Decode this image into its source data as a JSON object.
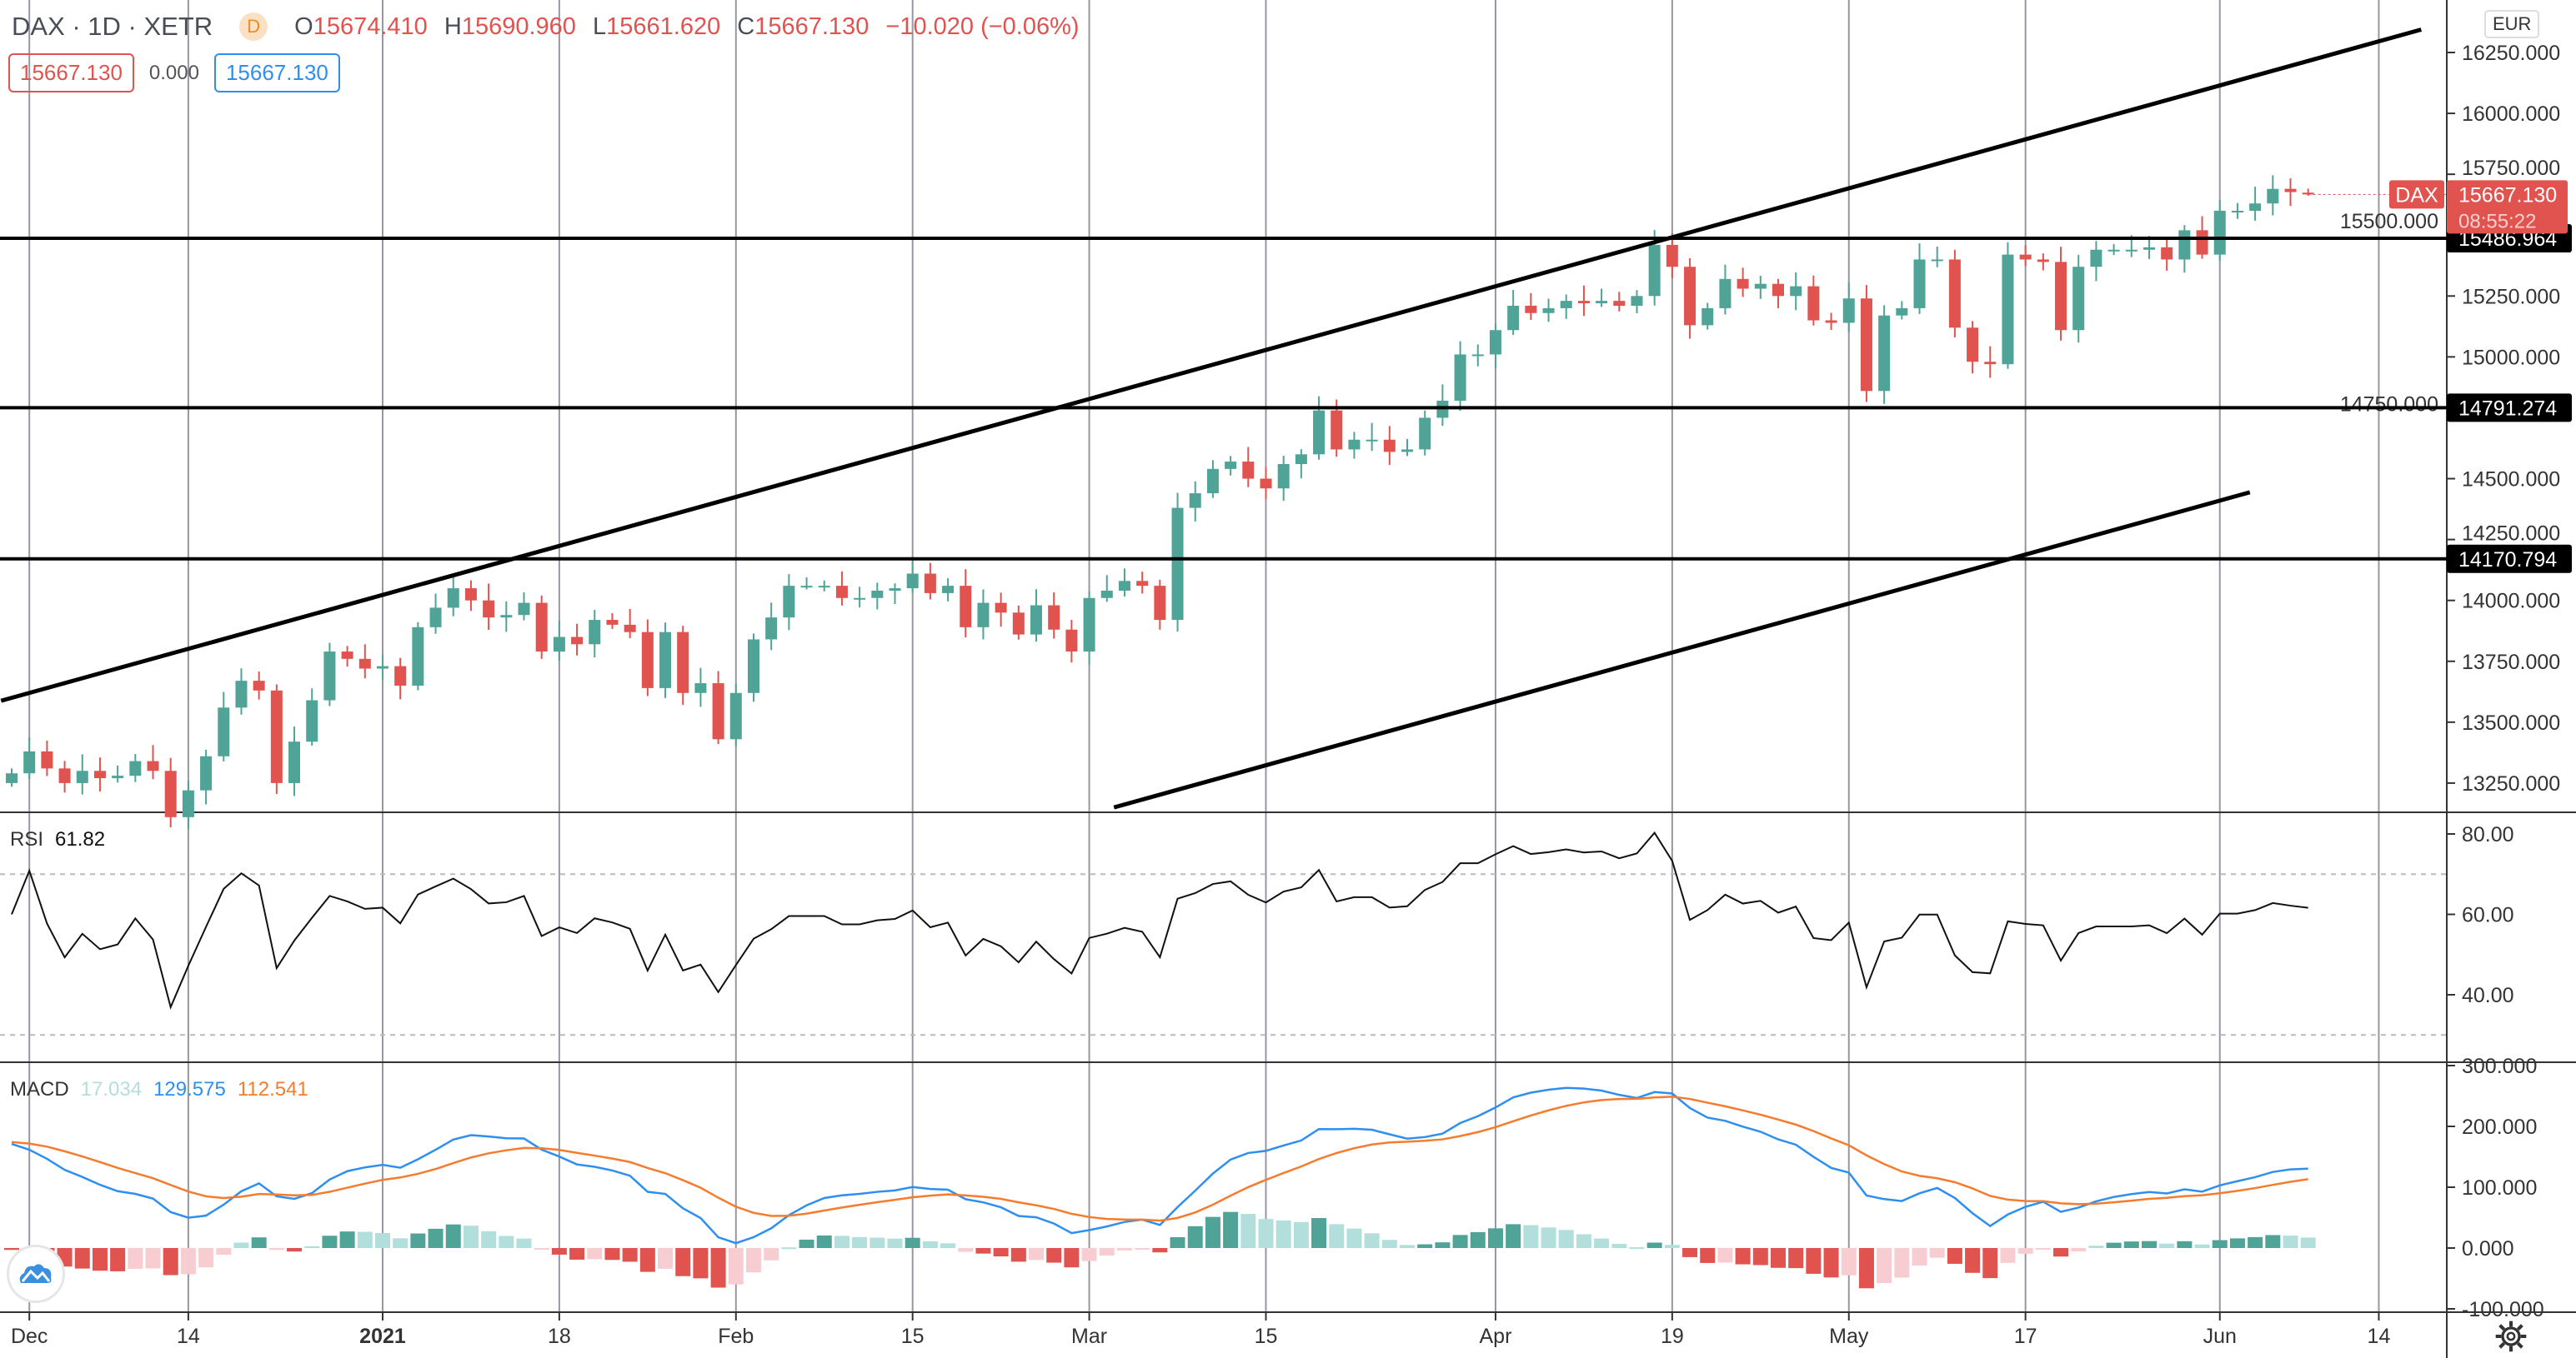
{
  "header": {
    "symbol": "DAX · 1D · XETR",
    "badge": "D",
    "o_label": "O",
    "o": "15674.410",
    "h_label": "H",
    "h": "15690.960",
    "l_label": "L",
    "l": "15661.620",
    "c_label": "C",
    "c": "15667.130",
    "change": "−10.020 (−0.06%)",
    "box_left": "15667.130",
    "box_mid": "0.000",
    "box_right": "15667.130",
    "currency": "EUR"
  },
  "rsi_legend": {
    "name": "RSI",
    "value": "61.82"
  },
  "macd_legend": {
    "name": "MACD",
    "hist": "17.034",
    "macd": "129.575",
    "signal": "112.541"
  },
  "colors": {
    "up": "#26a69a",
    "down": "#ef5350",
    "up_bar": "#4fa397",
    "down_bar": "#e0534f",
    "macd": "#2e8ff0",
    "signal": "#f57c2e",
    "hist_up_light": "#b2dfdb",
    "hist_down_light": "#f8cdd1",
    "grid": "#9598a1"
  },
  "chart_data": {
    "type": "candlestick",
    "title": "DAX · 1D · XETR",
    "closes": [
      13290,
      13380,
      13310,
      13250,
      13300,
      13270,
      13280,
      13340,
      13300,
      13110,
      13220,
      13360,
      13560,
      13670,
      13630,
      13250,
      13420,
      13590,
      13790,
      13760,
      13720,
      13730,
      13650,
      13890,
      13970,
      14050,
      14000,
      13930,
      13940,
      13990,
      13790,
      13850,
      13820,
      13920,
      13900,
      13870,
      13640,
      13870,
      13620,
      13660,
      13430,
      13620,
      13840,
      13930,
      14060,
      14060,
      14060,
      14010,
      14010,
      14040,
      14050,
      14110,
      14030,
      14060,
      13890,
      13990,
      13950,
      13860,
      13980,
      13880,
      13790,
      14010,
      14040,
      14080,
      14060,
      13920,
      14380,
      14440,
      14540,
      14570,
      14500,
      14460,
      14560,
      14600,
      14780,
      14620,
      14660,
      14660,
      14610,
      14620,
      14750,
      14820,
      15010,
      15010,
      15110,
      15210,
      15180,
      15200,
      15230,
      15220,
      15230,
      15210,
      15250,
      15460,
      15370,
      15130,
      15200,
      15320,
      15280,
      15300,
      15250,
      15290,
      15150,
      15140,
      15240,
      14860,
      15170,
      15200,
      15400,
      15400,
      15120,
      14980,
      14970,
      15420,
      15400,
      15390,
      15110,
      15370,
      15440,
      15440,
      15440,
      15450,
      15400,
      15520,
      15420,
      15600,
      15600,
      15630,
      15690,
      15677,
      15667.13
    ],
    "last_candle": {
      "open": 15674.41,
      "high": 15690.96,
      "low": 15661.62,
      "close": 15667.13
    },
    "ylim": [
      13150,
      16400
    ],
    "y_ticks": [
      "16250.000",
      "16000.000",
      "15750.000",
      "15500.000",
      "15250.000",
      "15000.000",
      "14750.000",
      "14500.000",
      "14250.000",
      "14000.000",
      "13750.000",
      "13500.000",
      "13250.000"
    ],
    "x_ticks": [
      {
        "index": 1,
        "label": "Dec"
      },
      {
        "index": 10,
        "label": "14"
      },
      {
        "index": 21,
        "label": "2021",
        "bold": true
      },
      {
        "index": 31,
        "label": "18"
      },
      {
        "index": 41,
        "label": "Feb"
      },
      {
        "index": 51,
        "label": "15"
      },
      {
        "index": 61,
        "label": "Mar"
      },
      {
        "index": 71,
        "label": "15"
      },
      {
        "index": 84,
        "label": "Apr"
      },
      {
        "index": 94,
        "label": "19"
      },
      {
        "index": 104,
        "label": "May"
      },
      {
        "index": 114,
        "label": "17"
      },
      {
        "index": 125,
        "label": "Jun"
      },
      {
        "index": 134,
        "label": "14"
      }
    ],
    "horizontal_levels": [
      {
        "price": 15486.964,
        "label": "15486.964"
      },
      {
        "price": 14791.274,
        "label": "14791.274"
      },
      {
        "price": 14170.794,
        "label": "14170.794"
      }
    ],
    "trend_lines": [
      {
        "from": [
          -0.6,
          13588
        ],
        "to": [
          136.4,
          16344
        ]
      },
      {
        "from": [
          62.4,
          13150
        ],
        "to": [
          126.7,
          14444
        ]
      }
    ],
    "last_price_tag": {
      "symbol": "DAX",
      "price": "15667.130",
      "countdown": "08:55:22"
    },
    "rsi": {
      "period": 14,
      "ylim": [
        30,
        90
      ],
      "ticks": [
        "80.00",
        "60.00",
        "40.00"
      ],
      "bands": [
        70,
        30
      ]
    },
    "macd": {
      "fast": 12,
      "slow": 26,
      "signal": 9,
      "ylim": [
        -110,
        310
      ],
      "ticks": [
        "300.000",
        "200.000",
        "100.000",
        "0.000",
        "-100.000"
      ]
    }
  }
}
